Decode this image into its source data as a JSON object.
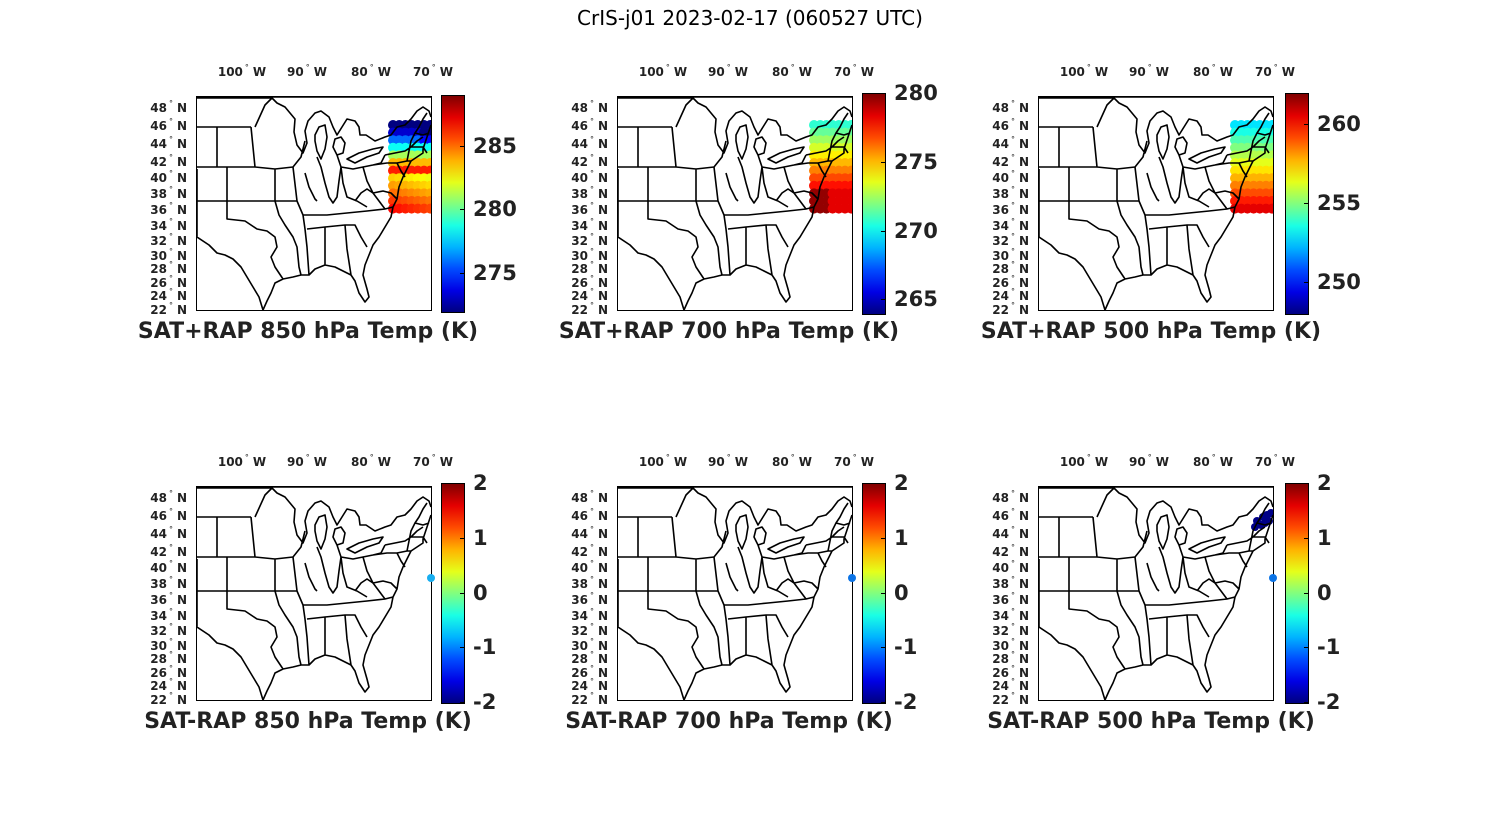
{
  "title": "CrIS-j01 2023-02-17 (060527 UTC)",
  "lon_labels": [
    "100",
    "90",
    "80",
    "70"
  ],
  "lon_suffix": "W",
  "lat_labels": [
    "48",
    "46",
    "44",
    "42",
    "40",
    "38",
    "36",
    "34",
    "32",
    "30",
    "28",
    "26",
    "24",
    "22"
  ],
  "lat_suffix": "N",
  "degree_symbol": "°",
  "panels": [
    {
      "title": "SAT+RAP 850 hPa Temp (K)",
      "cbar_ticks": [
        "285",
        "280",
        "275"
      ],
      "cbar_values": [
        285,
        280,
        275
      ],
      "cbar_range": [
        272,
        289
      ]
    },
    {
      "title": "SAT+RAP 700 hPa Temp (K)",
      "cbar_ticks": [
        "280",
        "275",
        "270",
        "265"
      ],
      "cbar_values": [
        280,
        275,
        270,
        265
      ],
      "cbar_range": [
        264,
        280
      ]
    },
    {
      "title": "SAT+RAP 500 hPa Temp (K)",
      "cbar_ticks": [
        "260",
        "255",
        "250"
      ],
      "cbar_values": [
        260,
        255,
        250
      ],
      "cbar_range": [
        248,
        262
      ]
    },
    {
      "title": "SAT-RAP 850 hPa Temp (K)",
      "cbar_ticks": [
        "2",
        "1",
        "0",
        "-1",
        "-2"
      ],
      "cbar_values": [
        2,
        1,
        0,
        -1,
        -2
      ],
      "cbar_range": [
        -2,
        2
      ]
    },
    {
      "title": "SAT-RAP 700 hPa Temp (K)",
      "cbar_ticks": [
        "2",
        "1",
        "0",
        "-1",
        "-2"
      ],
      "cbar_values": [
        2,
        1,
        0,
        -1,
        -2
      ],
      "cbar_range": [
        -2,
        2
      ]
    },
    {
      "title": "SAT-RAP 500 hPa Temp (K)",
      "cbar_ticks": [
        "2",
        "1",
        "0",
        "-1",
        "-2"
      ],
      "cbar_values": [
        2,
        1,
        0,
        -1,
        -2
      ],
      "cbar_range": [
        -2,
        2
      ]
    }
  ],
  "colormap": "jet"
}
